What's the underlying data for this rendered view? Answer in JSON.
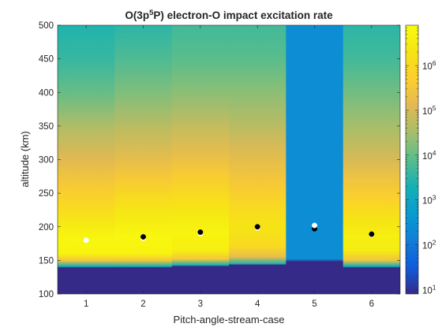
{
  "chart_data": {
    "type": "heatmap",
    "title_prefix": "O(3p",
    "title_sup1": "5",
    "title_mid": "P) electron-O impact excitation rate",
    "xlabel": "Pitch-angle-stream-case",
    "ylabel": "altitude (km)",
    "x_ticks": [
      "1",
      "2",
      "3",
      "4",
      "5",
      "6"
    ],
    "y_ticks": [
      "100",
      "150",
      "200",
      "250",
      "300",
      "350",
      "400",
      "450",
      "500"
    ],
    "ylim": [
      100,
      500
    ],
    "xlim": [
      0.5,
      6.5
    ],
    "colorbar": {
      "scale": "log",
      "range_log10": [
        0.9,
        6.9
      ],
      "tick_base": "10",
      "tick_exponents": [
        "1",
        "2",
        "3",
        "4",
        "5",
        "6"
      ],
      "colormap": "parula"
    },
    "columns": [
      {
        "case": 1,
        "cutoff_km": 140,
        "profile": [
          [
            100,
            0.9
          ],
          [
            139,
            0.9
          ],
          [
            141,
            3.2
          ],
          [
            150,
            5.5
          ],
          [
            160,
            6.7
          ],
          [
            180,
            6.8
          ],
          [
            200,
            6.5
          ],
          [
            230,
            6.0
          ],
          [
            260,
            5.6
          ],
          [
            300,
            5.1
          ],
          [
            350,
            4.6
          ],
          [
            400,
            4.0
          ],
          [
            450,
            3.6
          ],
          [
            500,
            3.4
          ]
        ]
      },
      {
        "case": 2,
        "cutoff_km": 140,
        "profile": [
          [
            100,
            0.9
          ],
          [
            139,
            0.9
          ],
          [
            141,
            3.3
          ],
          [
            150,
            5.5
          ],
          [
            160,
            6.7
          ],
          [
            185,
            6.8
          ],
          [
            210,
            6.5
          ],
          [
            240,
            6.1
          ],
          [
            270,
            5.6
          ],
          [
            300,
            5.2
          ],
          [
            350,
            4.7
          ],
          [
            400,
            4.2
          ],
          [
            450,
            3.8
          ],
          [
            500,
            3.5
          ]
        ]
      },
      {
        "case": 3,
        "cutoff_km": 142,
        "profile": [
          [
            100,
            0.9
          ],
          [
            141,
            0.9
          ],
          [
            143,
            3.3
          ],
          [
            152,
            5.5
          ],
          [
            165,
            6.6
          ],
          [
            190,
            6.7
          ],
          [
            220,
            6.4
          ],
          [
            250,
            6.0
          ],
          [
            280,
            5.6
          ],
          [
            310,
            5.2
          ],
          [
            350,
            4.8
          ],
          [
            400,
            4.3
          ],
          [
            450,
            3.9
          ],
          [
            500,
            3.7
          ]
        ]
      },
      {
        "case": 4,
        "cutoff_km": 144,
        "profile": [
          [
            100,
            0.9
          ],
          [
            143,
            0.9
          ],
          [
            145,
            3.4
          ],
          [
            155,
            5.2
          ],
          [
            170,
            6.0
          ],
          [
            200,
            6.3
          ],
          [
            230,
            6.0
          ],
          [
            260,
            5.6
          ],
          [
            290,
            5.3
          ],
          [
            320,
            5.0
          ],
          [
            350,
            4.7
          ],
          [
            400,
            4.3
          ],
          [
            450,
            3.9
          ],
          [
            500,
            3.7
          ]
        ]
      },
      {
        "case": 5,
        "cutoff_km": 150,
        "profile": [
          [
            100,
            0.9
          ],
          [
            148,
            0.9
          ],
          [
            152,
            2.4
          ],
          [
            500,
            2.4
          ]
        ]
      },
      {
        "case": 6,
        "cutoff_km": 140,
        "profile": [
          [
            100,
            0.9
          ],
          [
            139,
            0.9
          ],
          [
            141,
            3.2
          ],
          [
            150,
            5.4
          ],
          [
            165,
            6.5
          ],
          [
            185,
            6.6
          ],
          [
            210,
            6.3
          ],
          [
            240,
            5.8
          ],
          [
            270,
            5.4
          ],
          [
            300,
            5.0
          ],
          [
            350,
            4.5
          ],
          [
            400,
            4.1
          ],
          [
            450,
            3.7
          ],
          [
            500,
            3.5
          ]
        ]
      }
    ],
    "markers": [
      {
        "x": 1,
        "y": 180,
        "color": "#ffffff"
      },
      {
        "x": 2,
        "y": 183,
        "color": "#ffffff"
      },
      {
        "x": 2,
        "y": 185,
        "color": "#000000"
      },
      {
        "x": 3,
        "y": 190,
        "color": "#ffffff"
      },
      {
        "x": 3,
        "y": 192,
        "color": "#000000"
      },
      {
        "x": 4,
        "y": 198,
        "color": "#ffffff"
      },
      {
        "x": 4,
        "y": 200,
        "color": "#000000"
      },
      {
        "x": 5,
        "y": 197,
        "color": "#000000"
      },
      {
        "x": 5,
        "y": 202,
        "color": "#ffffff"
      },
      {
        "x": 6,
        "y": 188,
        "color": "#ffffff"
      },
      {
        "x": 6,
        "y": 189,
        "color": "#000000"
      }
    ]
  }
}
